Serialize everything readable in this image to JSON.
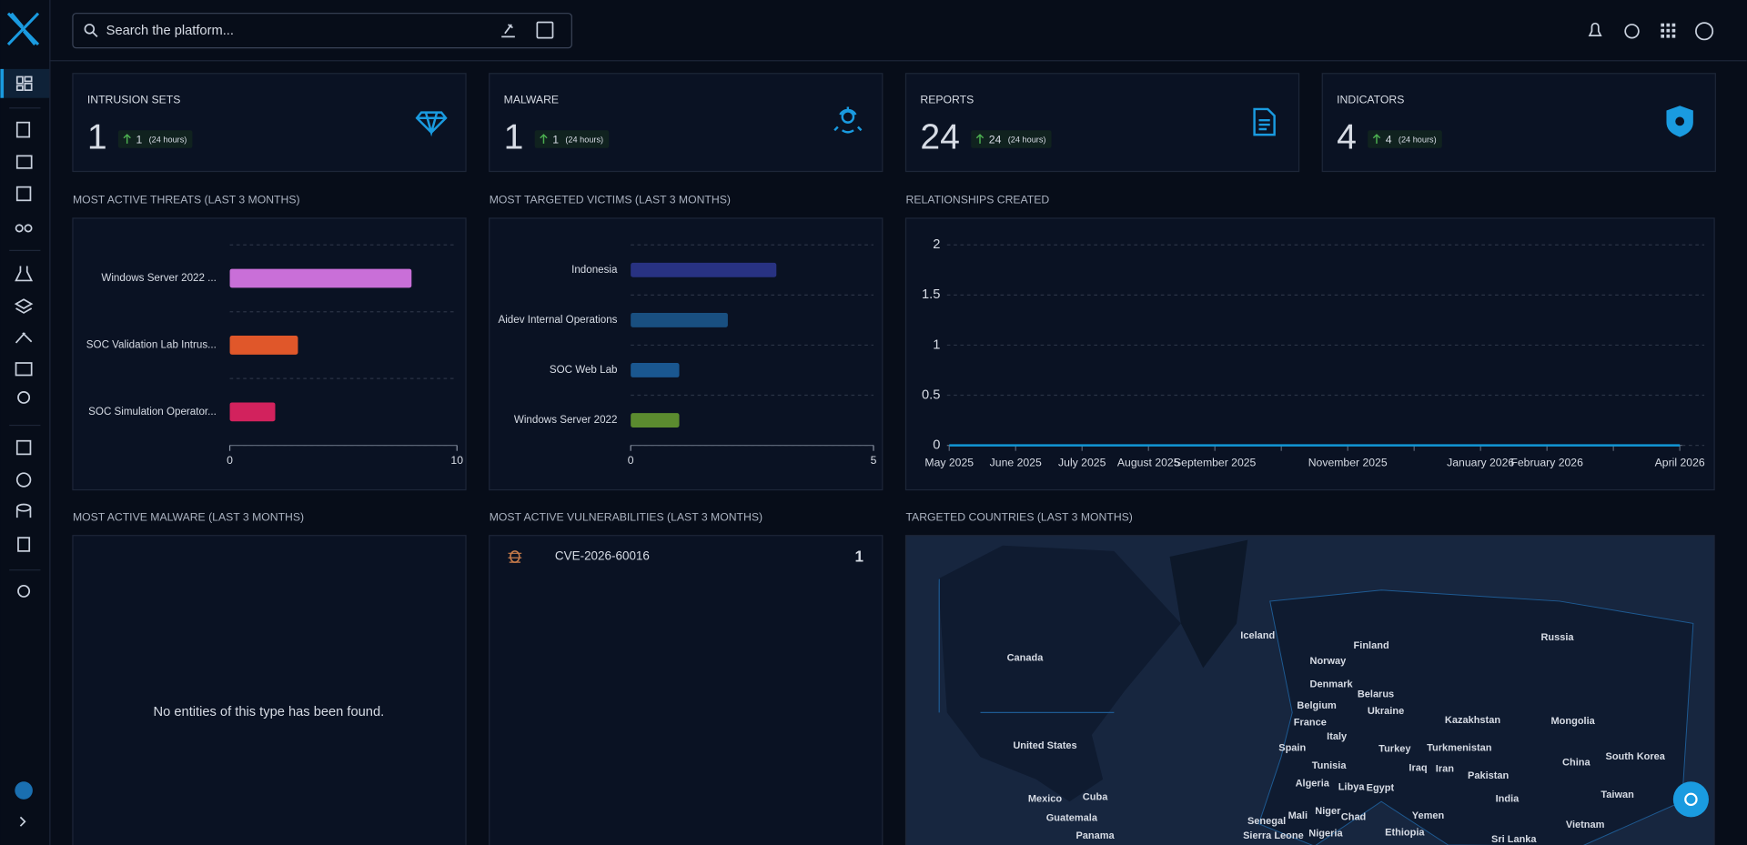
{
  "header": {
    "search_placeholder": "Search the platform..."
  },
  "cards": [
    {
      "label": "INTRUSION SETS",
      "value": 1,
      "delta": 1,
      "period": "(24 hours)"
    },
    {
      "label": "MALWARE",
      "value": 1,
      "delta": 1,
      "period": "(24 hours)"
    },
    {
      "label": "REPORTS",
      "value": 24,
      "delta": 24,
      "period": "(24 hours)"
    },
    {
      "label": "INDICATORS",
      "value": 4,
      "delta": 4,
      "period": "(24 hours)"
    }
  ],
  "widgets": {
    "threats": {
      "title": "MOST ACTIVE THREATS (LAST 3 MONTHS)",
      "type": "bar",
      "categories": [
        "Windows Server 2022 ...",
        "SOC Validation Lab Intrus...",
        "SOC Simulation Operator..."
      ],
      "values": [
        8,
        3,
        2
      ],
      "colors": [
        "#c96fd8",
        "#e0572a",
        "#d2225d"
      ],
      "xlim": [
        0,
        10
      ],
      "xticks": [
        0,
        10
      ]
    },
    "victims": {
      "title": "MOST TARGETED VICTIMS (LAST 3 MONTHS)",
      "type": "bar",
      "categories": [
        "Indonesia",
        "Aidev Internal Operations",
        "SOC Web Lab",
        "Windows Server 2022"
      ],
      "values": [
        3,
        2,
        1,
        1
      ],
      "colors": [
        "#283282",
        "#194f80",
        "#1a5790",
        "#5b8b2f"
      ],
      "xlim": [
        0,
        5
      ],
      "xticks": [
        0,
        5
      ]
    },
    "relationships": {
      "title": "RELATIONSHIPS CREATED",
      "type": "line",
      "categories": [
        "May 2025",
        "June 2025",
        "July 2025",
        "August 2025",
        "September 2025",
        null,
        "November 2025",
        null,
        "January 2026",
        "February 2026",
        null,
        "April 2026"
      ],
      "values": [
        0,
        0,
        0,
        0,
        0,
        0,
        0,
        0,
        0,
        0,
        0,
        0
      ],
      "color": "#1297d6",
      "ylim": [
        0,
        2
      ],
      "yticks": [
        0,
        0.5,
        1,
        1.5,
        2
      ],
      "grid": true
    },
    "malware": {
      "title": "MOST ACTIVE MALWARE (LAST 3 MONTHS)",
      "empty_message": "No entities of this type has been found."
    },
    "vulnerabilities": {
      "title": "MOST ACTIVE VULNERABILITIES (LAST 3 MONTHS)",
      "items": [
        {
          "name": "CVE-2026-60016",
          "count": 1
        }
      ]
    },
    "countries": {
      "title": "TARGETED COUNTRIES (LAST 3 MONTHS)",
      "labels": [
        "Iceland",
        "Finland",
        "Russia",
        "Canada",
        "Norway",
        "Denmark",
        "Belarus",
        "Belgium",
        "Ukraine",
        "France",
        "Kazakhstan",
        "Mongolia",
        "United States",
        "Italy",
        "Spain",
        "Turkey",
        "Turkmenistan",
        "Tunisia",
        "Iraq",
        "Iran",
        "Pakistan",
        "China",
        "South Korea",
        "Algeria",
        "Libya",
        "Egypt",
        "Mexico",
        "Cuba",
        "India",
        "Taiwan",
        "Guatemala",
        "Yemen",
        "Senegal",
        "Mali",
        "Niger",
        "Chad",
        "Vietnam",
        "Sierra Leone",
        "Nigeria",
        "Ethiopia",
        "Panama",
        "Sri Lanka"
      ]
    }
  }
}
